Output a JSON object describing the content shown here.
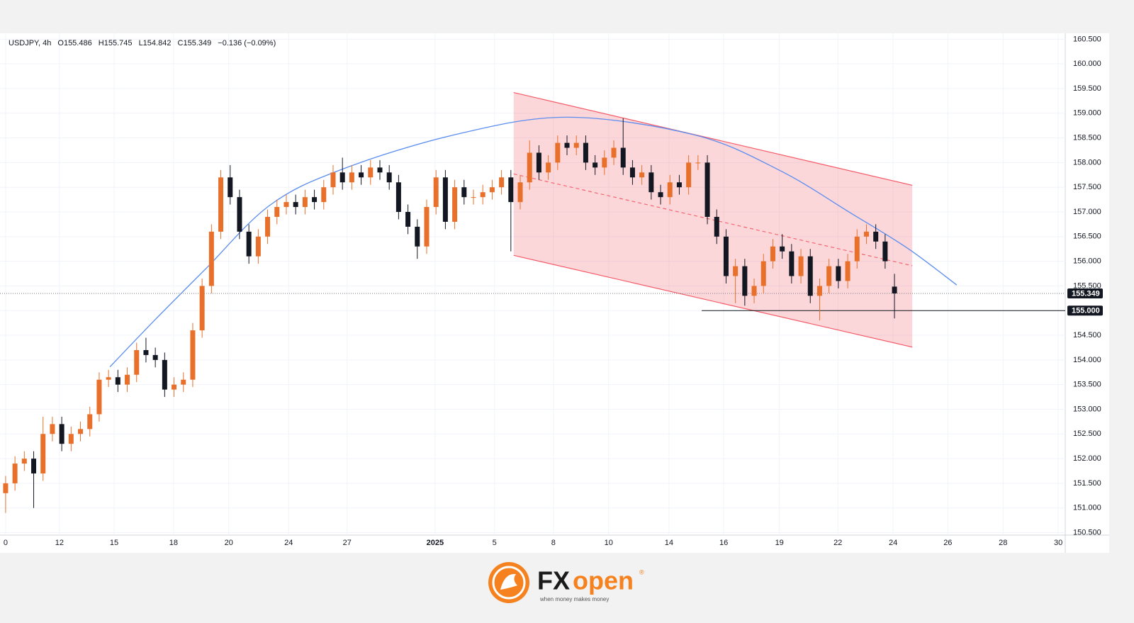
{
  "chart_data": {
    "type": "candlestick",
    "header": {
      "symbol": "USDJPY, 4h",
      "open": "O155.486",
      "high": "H155.745",
      "low": "L154.842",
      "close": "C155.349",
      "change": "−0.136 (−0.09%)"
    },
    "x": [
      0,
      2,
      4,
      6,
      8,
      10,
      12,
      14,
      16,
      18,
      20,
      22,
      24,
      26,
      28,
      30,
      32,
      34,
      36,
      38,
      40,
      42,
      44,
      46,
      48,
      50,
      52,
      54,
      56,
      58,
      60,
      62,
      64,
      66,
      68,
      70,
      72,
      74,
      76,
      78,
      80,
      82,
      84,
      86,
      88,
      90,
      92,
      94,
      96,
      98,
      100,
      102,
      104,
      106,
      108,
      110,
      112,
      114,
      116,
      118,
      120,
      122,
      124,
      126,
      128,
      130,
      132,
      134,
      136,
      138,
      140,
      142,
      144,
      146,
      148,
      150,
      152,
      154,
      156,
      158,
      160,
      162,
      164,
      166,
      168,
      170,
      172,
      174,
      176,
      178,
      180,
      182,
      184,
      186,
      188,
      190
    ],
    "open": [
      151.3,
      151.5,
      151.9,
      152.0,
      151.7,
      152.5,
      152.7,
      152.3,
      152.5,
      152.6,
      152.9,
      153.6,
      153.65,
      153.5,
      153.7,
      154.2,
      154.1,
      154.0,
      153.4,
      153.5,
      153.6,
      154.6,
      155.5,
      156.6,
      157.7,
      157.3,
      156.6,
      156.1,
      156.5,
      156.9,
      157.1,
      157.2,
      157.1,
      157.3,
      157.2,
      157.5,
      157.8,
      157.6,
      157.8,
      157.7,
      157.9,
      157.8,
      157.6,
      157.0,
      156.7,
      156.3,
      157.1,
      157.7,
      156.8,
      157.5,
      157.3,
      157.3,
      157.4,
      157.5,
      157.7,
      157.2,
      157.6,
      158.2,
      157.8,
      158.0,
      158.4,
      158.3,
      158.4,
      158.0,
      157.9,
      158.1,
      158.3,
      157.9,
      157.7,
      157.8,
      157.4,
      157.3,
      157.6,
      157.5,
      158.0,
      158.0,
      156.9,
      156.5,
      155.7,
      155.9,
      155.3,
      155.5,
      156.0,
      156.3,
      156.2,
      155.7,
      156.1,
      155.3,
      155.5,
      155.9,
      155.6,
      156.0,
      156.5,
      156.6,
      156.4,
      155.486
    ],
    "high": [
      151.65,
      152.05,
      152.15,
      152.15,
      152.85,
      152.85,
      152.85,
      152.65,
      152.75,
      153.05,
      153.75,
      153.8,
      153.8,
      153.85,
      154.35,
      154.45,
      154.25,
      154.15,
      153.65,
      153.75,
      154.75,
      155.65,
      156.75,
      157.85,
      157.95,
      157.45,
      156.75,
      156.65,
      157.05,
      157.25,
      157.35,
      157.35,
      157.45,
      157.45,
      157.65,
      157.95,
      158.1,
      157.95,
      157.95,
      158.05,
      158.05,
      157.95,
      157.75,
      157.15,
      156.85,
      157.25,
      157.85,
      157.85,
      157.65,
      157.65,
      157.45,
      157.55,
      157.65,
      157.85,
      157.85,
      157.75,
      158.45,
      158.35,
      158.15,
      158.55,
      158.55,
      158.55,
      158.55,
      158.15,
      158.25,
      158.45,
      158.9,
      158.05,
      157.95,
      157.95,
      157.55,
      157.75,
      157.75,
      158.15,
      158.15,
      158.15,
      157.05,
      156.65,
      156.05,
      156.05,
      155.65,
      156.15,
      156.45,
      156.55,
      156.35,
      156.25,
      156.25,
      155.65,
      156.05,
      156.05,
      156.15,
      156.65,
      156.75,
      156.75,
      156.55,
      155.745
    ],
    "low": [
      150.9,
      151.35,
      151.75,
      151.0,
      151.55,
      152.35,
      152.15,
      152.15,
      152.35,
      152.45,
      152.75,
      153.45,
      153.35,
      153.35,
      153.55,
      153.95,
      153.85,
      153.25,
      153.25,
      153.35,
      153.45,
      154.45,
      155.35,
      156.45,
      157.15,
      156.45,
      155.95,
      155.95,
      156.35,
      156.75,
      156.95,
      156.95,
      156.95,
      157.05,
      157.05,
      157.35,
      157.45,
      157.45,
      157.55,
      157.55,
      157.65,
      157.45,
      156.85,
      156.55,
      156.05,
      156.15,
      156.95,
      156.65,
      156.65,
      157.15,
      157.15,
      157.15,
      157.25,
      157.35,
      156.2,
      157.05,
      157.45,
      157.65,
      157.65,
      157.85,
      158.15,
      158.15,
      157.85,
      157.75,
      157.75,
      157.95,
      157.75,
      157.55,
      157.55,
      157.25,
      157.15,
      157.15,
      157.35,
      157.35,
      157.85,
      156.75,
      156.35,
      155.55,
      155.15,
      155.1,
      155.15,
      155.35,
      155.85,
      156.05,
      155.55,
      155.55,
      155.15,
      154.8,
      155.35,
      155.45,
      155.45,
      155.85,
      156.35,
      156.25,
      155.85,
      154.842
    ],
    "close": [
      151.5,
      151.9,
      152.0,
      151.7,
      152.5,
      152.7,
      152.3,
      152.5,
      152.6,
      152.9,
      153.6,
      153.65,
      153.5,
      153.7,
      154.2,
      154.1,
      154.0,
      153.4,
      153.5,
      153.6,
      154.6,
      155.5,
      156.6,
      157.7,
      157.3,
      156.6,
      156.1,
      156.5,
      156.9,
      157.1,
      157.2,
      157.1,
      157.3,
      157.2,
      157.5,
      157.8,
      157.6,
      157.8,
      157.7,
      157.9,
      157.8,
      157.6,
      157.0,
      156.7,
      156.3,
      157.1,
      157.7,
      156.8,
      157.5,
      157.3,
      157.3,
      157.4,
      157.5,
      157.7,
      157.2,
      157.6,
      158.2,
      157.8,
      158.0,
      158.4,
      158.3,
      158.4,
      158.0,
      157.9,
      158.1,
      158.3,
      157.9,
      157.7,
      157.8,
      157.4,
      157.3,
      157.6,
      157.5,
      158.0,
      158.0,
      156.9,
      156.5,
      155.7,
      155.9,
      155.3,
      155.5,
      156.0,
      156.3,
      156.2,
      155.7,
      156.1,
      155.3,
      155.5,
      155.9,
      155.6,
      156.0,
      156.5,
      156.6,
      156.4,
      156.0,
      155.349
    ],
    "up_color": "#e8702a",
    "down_color": "#131722",
    "xlim": [
      -1.2,
      226.5
    ],
    "xticks": [
      {
        "value": 0,
        "label": "0"
      },
      {
        "value": 11.5,
        "label": "12"
      },
      {
        "value": 23.2,
        "label": "15"
      },
      {
        "value": 35.9,
        "label": "18"
      },
      {
        "value": 47.7,
        "label": "20"
      },
      {
        "value": 60.5,
        "label": "24"
      },
      {
        "value": 73,
        "label": "27"
      },
      {
        "value": 91.8,
        "label": "2025"
      },
      {
        "value": 104.5,
        "label": "5"
      },
      {
        "value": 117.1,
        "label": "8"
      },
      {
        "value": 128.9,
        "label": "10"
      },
      {
        "value": 141.8,
        "label": "14"
      },
      {
        "value": 153.5,
        "label": "16"
      },
      {
        "value": 165.4,
        "label": "19"
      },
      {
        "value": 177.9,
        "label": "22"
      },
      {
        "value": 189.7,
        "label": "24"
      },
      {
        "value": 201.4,
        "label": "26"
      },
      {
        "value": 213.2,
        "label": "28"
      },
      {
        "value": 225,
        "label": "30"
      }
    ],
    "ylim": [
      150.45,
      160.62
    ],
    "yticks": [
      {
        "value": 150.5,
        "label": "150.500"
      },
      {
        "value": 151,
        "label": "151.000"
      },
      {
        "value": 151.5,
        "label": "151.500"
      },
      {
        "value": 152,
        "label": "152.000"
      },
      {
        "value": 152.5,
        "label": "152.500"
      },
      {
        "value": 153,
        "label": "153.000"
      },
      {
        "value": 153.5,
        "label": "153.500"
      },
      {
        "value": 154,
        "label": "154.000"
      },
      {
        "value": 154.5,
        "label": "154.500"
      },
      {
        "value": 155,
        "label": "155.000"
      },
      {
        "value": 155.5,
        "label": "155.500"
      },
      {
        "value": 156,
        "label": "156.000"
      },
      {
        "value": 156.5,
        "label": "156.500"
      },
      {
        "value": 157,
        "label": "157.000"
      },
      {
        "value": 157.5,
        "label": "157.500"
      },
      {
        "value": 158,
        "label": "158.000"
      },
      {
        "value": 158.5,
        "label": "158.500"
      },
      {
        "value": 159,
        "label": "159.000"
      },
      {
        "value": 159.5,
        "label": "159.500"
      },
      {
        "value": 160,
        "label": "160.000"
      },
      {
        "value": 160.5,
        "label": "160.500"
      }
    ],
    "grid": true,
    "last_price": {
      "value": 155.349,
      "label": "155.349"
    },
    "level": {
      "value": 155.0,
      "label": "155.000",
      "x_start": 148.8
    },
    "channel": {
      "x": [
        108.6,
        193.8
      ],
      "upper": [
        159.42,
        157.54
      ],
      "middle": [
        157.77,
        155.91
      ],
      "lower": [
        156.12,
        154.26
      ],
      "color": "#f23645"
    },
    "arc": {
      "x": [
        22.3,
        32.1,
        42.7,
        56.4,
        71.5,
        95.8,
        120,
        147.3,
        165.5,
        180.6,
        192.7,
        203.3
      ],
      "y": [
        153.86,
        154.83,
        155.84,
        157.13,
        157.85,
        158.56,
        158.92,
        158.56,
        157.84,
        156.98,
        156.27,
        155.52
      ],
      "color": "#5b8def"
    }
  },
  "logo": {
    "fx": "FX",
    "open": "open",
    "mark": "®",
    "tagline": "when money makes money"
  }
}
